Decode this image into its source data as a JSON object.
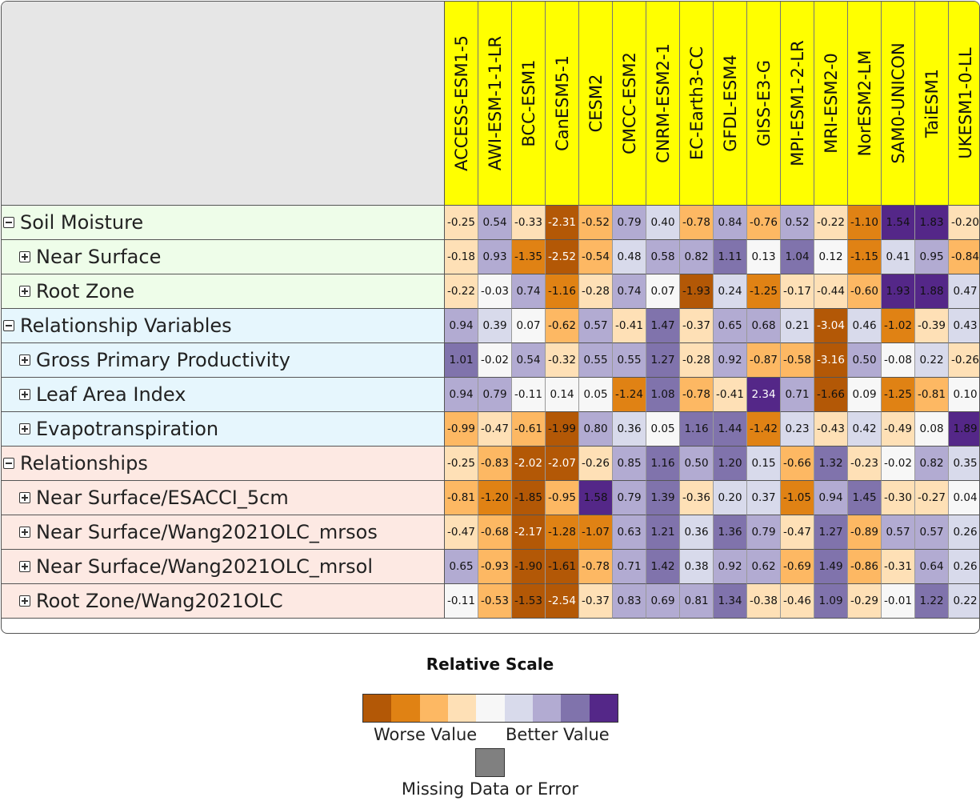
{
  "models": [
    "ACCESS-ESM1-5",
    "AWI-ESM-1-1-LR",
    "BCC-ESM1",
    "CanESM5-1",
    "CESM2",
    "CMCC-ESM2",
    "CNRM-ESM2-1",
    "EC-Earth3-CC",
    "GFDL-ESM4",
    "GISS-E3-G",
    "MPI-ESM1-2-LR",
    "MRI-ESM2-0",
    "NorESM2-LM",
    "SAM0-UNICON",
    "TaiESM1",
    "UKESM1-0-LL"
  ],
  "rows": [
    {
      "label": "Soil Moisture",
      "group": "soil",
      "level": 0,
      "values": [
        "-0.25",
        "0.54",
        "-0.33",
        "-2.31",
        "-0.52",
        "0.79",
        "0.40",
        "-0.78",
        "0.84",
        "-0.76",
        "0.52",
        "-0.22",
        "-1.10",
        "1.54",
        "1.83",
        "-0.20"
      ]
    },
    {
      "label": "Near Surface",
      "group": "soil",
      "level": 1,
      "values": [
        "-0.18",
        "0.93",
        "-1.35",
        "-2.52",
        "-0.54",
        "0.48",
        "0.58",
        "0.82",
        "1.11",
        "0.13",
        "1.04",
        "0.12",
        "-1.15",
        "0.41",
        "0.95",
        "-0.84"
      ]
    },
    {
      "label": "Root Zone",
      "group": "soil",
      "level": 1,
      "values": [
        "-0.22",
        "-0.03",
        "0.74",
        "-1.16",
        "-0.28",
        "0.74",
        "0.07",
        "-1.93",
        "0.24",
        "-1.25",
        "-0.17",
        "-0.44",
        "-0.60",
        "1.93",
        "1.88",
        "0.47"
      ]
    },
    {
      "label": "Relationship Variables",
      "group": "relvar",
      "level": 0,
      "values": [
        "0.94",
        "0.39",
        "0.07",
        "-0.62",
        "0.57",
        "-0.41",
        "1.47",
        "-0.37",
        "0.65",
        "0.68",
        "0.21",
        "-3.04",
        "0.46",
        "-1.02",
        "-0.39",
        "0.43"
      ]
    },
    {
      "label": "Gross Primary Productivity",
      "group": "relvar",
      "level": 1,
      "values": [
        "1.01",
        "-0.02",
        "0.54",
        "-0.32",
        "0.55",
        "0.55",
        "1.27",
        "-0.28",
        "0.92",
        "-0.87",
        "-0.58",
        "-3.16",
        "0.50",
        "-0.08",
        "0.22",
        "-0.26"
      ]
    },
    {
      "label": "Leaf Area Index",
      "group": "relvar",
      "level": 1,
      "values": [
        "0.94",
        "0.79",
        "-0.11",
        "0.14",
        "0.05",
        "-1.24",
        "1.08",
        "-0.78",
        "-0.41",
        "2.34",
        "0.71",
        "-1.66",
        "0.09",
        "-1.25",
        "-0.81",
        "0.10"
      ]
    },
    {
      "label": "Evapotranspiration",
      "group": "relvar",
      "level": 1,
      "values": [
        "-0.99",
        "-0.47",
        "-0.61",
        "-1.99",
        "0.80",
        "0.36",
        "0.05",
        "1.16",
        "1.44",
        "-1.42",
        "0.23",
        "-0.43",
        "0.42",
        "-0.49",
        "0.08",
        "1.89"
      ]
    },
    {
      "label": "Relationships",
      "group": "rel",
      "level": 0,
      "values": [
        "-0.25",
        "-0.83",
        "-2.02",
        "-2.07",
        "-0.26",
        "0.85",
        "1.16",
        "0.50",
        "1.20",
        "0.15",
        "-0.66",
        "1.32",
        "-0.23",
        "-0.02",
        "0.82",
        "0.35"
      ]
    },
    {
      "label": "Near Surface/ESACCI_5cm",
      "group": "rel",
      "level": 1,
      "values": [
        "-0.81",
        "-1.20",
        "-1.85",
        "-0.95",
        "1.58",
        "0.79",
        "1.39",
        "-0.36",
        "0.20",
        "0.37",
        "-1.05",
        "0.94",
        "1.45",
        "-0.30",
        "-0.27",
        "0.04"
      ]
    },
    {
      "label": "Near Surface/Wang2021OLC_mrsos",
      "group": "rel",
      "level": 1,
      "values": [
        "-0.47",
        "-0.68",
        "-2.17",
        "-1.28",
        "-1.07",
        "0.63",
        "1.21",
        "0.36",
        "1.36",
        "0.79",
        "-0.47",
        "1.27",
        "-0.89",
        "0.57",
        "0.57",
        "0.26"
      ]
    },
    {
      "label": "Near Surface/Wang2021OLC_mrsol",
      "group": "rel",
      "level": 1,
      "values": [
        "0.65",
        "-0.93",
        "-1.90",
        "-1.61",
        "-0.78",
        "0.71",
        "1.42",
        "0.38",
        "0.92",
        "0.62",
        "-0.69",
        "1.49",
        "-0.86",
        "-0.31",
        "0.64",
        "0.26"
      ]
    },
    {
      "label": "Root Zone/Wang2021OLC",
      "group": "rel",
      "level": 1,
      "values": [
        "-0.11",
        "-0.53",
        "-1.53",
        "-2.54",
        "-0.37",
        "0.83",
        "0.69",
        "0.81",
        "1.34",
        "-0.38",
        "-0.46",
        "1.09",
        "-0.29",
        "-0.01",
        "1.22",
        "0.22"
      ]
    }
  ],
  "group_colors": {
    "soil": "#eefde9",
    "relvar": "#e6f6fd",
    "rel": "#fde9e3"
  },
  "header_color": "#ffff00",
  "scale_colors": [
    "#b35806",
    "#e08214",
    "#fdb863",
    "#fee0b6",
    "#f7f7f7",
    "#d8daeb",
    "#b2abd2",
    "#8073ac",
    "#542788"
  ],
  "missing_color": "#808080",
  "legend": {
    "title": "Relative Scale",
    "worse": "Worse Value",
    "better": "Better Value",
    "missing": "Missing Data or Error"
  },
  "chart_data": {
    "type": "heatmap",
    "x": [
      "ACCESS-ESM1-5",
      "AWI-ESM-1-1-LR",
      "BCC-ESM1",
      "CanESM5-1",
      "CESM2",
      "CMCC-ESM2",
      "CNRM-ESM2-1",
      "EC-Earth3-CC",
      "GFDL-ESM4",
      "GISS-E3-G",
      "MPI-ESM1-2-LR",
      "MRI-ESM2-0",
      "NorESM2-LM",
      "SAM0-UNICON",
      "TaiESM1",
      "UKESM1-0-LL"
    ],
    "y": [
      "Soil Moisture",
      "Near Surface",
      "Root Zone",
      "Relationship Variables",
      "Gross Primary Productivity",
      "Leaf Area Index",
      "Evapotranspiration",
      "Relationships",
      "Near Surface/ESACCI_5cm",
      "Near Surface/Wang2021OLC_mrsos",
      "Near Surface/Wang2021OLC_mrsol",
      "Root Zone/Wang2021OLC"
    ],
    "values": [
      [
        -0.25,
        0.54,
        -0.33,
        -2.31,
        -0.52,
        0.79,
        0.4,
        -0.78,
        0.84,
        -0.76,
        0.52,
        -0.22,
        -1.1,
        1.54,
        1.83,
        -0.2
      ],
      [
        -0.18,
        0.93,
        -1.35,
        -2.52,
        -0.54,
        0.48,
        0.58,
        0.82,
        1.11,
        0.13,
        1.04,
        0.12,
        -1.15,
        0.41,
        0.95,
        -0.84
      ],
      [
        -0.22,
        -0.03,
        0.74,
        -1.16,
        -0.28,
        0.74,
        0.07,
        -1.93,
        0.24,
        -1.25,
        -0.17,
        -0.44,
        -0.6,
        1.93,
        1.88,
        0.47
      ],
      [
        0.94,
        0.39,
        0.07,
        -0.62,
        0.57,
        -0.41,
        1.47,
        -0.37,
        0.65,
        0.68,
        0.21,
        -3.04,
        0.46,
        -1.02,
        -0.39,
        0.43
      ],
      [
        1.01,
        -0.02,
        0.54,
        -0.32,
        0.55,
        0.55,
        1.27,
        -0.28,
        0.92,
        -0.87,
        -0.58,
        -3.16,
        0.5,
        -0.08,
        0.22,
        -0.26
      ],
      [
        0.94,
        0.79,
        -0.11,
        0.14,
        0.05,
        -1.24,
        1.08,
        -0.78,
        -0.41,
        2.34,
        0.71,
        -1.66,
        0.09,
        -1.25,
        -0.81,
        0.1
      ],
      [
        -0.99,
        -0.47,
        -0.61,
        -1.99,
        0.8,
        0.36,
        0.05,
        1.16,
        1.44,
        -1.42,
        0.23,
        -0.43,
        0.42,
        -0.49,
        0.08,
        1.89
      ],
      [
        -0.25,
        -0.83,
        -2.02,
        -2.07,
        -0.26,
        0.85,
        1.16,
        0.5,
        1.2,
        0.15,
        -0.66,
        1.32,
        -0.23,
        -0.02,
        0.82,
        0.35
      ],
      [
        -0.81,
        -1.2,
        -1.85,
        -0.95,
        1.58,
        0.79,
        1.39,
        -0.36,
        0.2,
        0.37,
        -1.05,
        0.94,
        1.45,
        -0.3,
        -0.27,
        0.04
      ],
      [
        -0.47,
        -0.68,
        -2.17,
        -1.28,
        -1.07,
        0.63,
        1.21,
        0.36,
        1.36,
        0.79,
        -0.47,
        1.27,
        -0.89,
        0.57,
        0.57,
        0.26
      ],
      [
        0.65,
        -0.93,
        -1.9,
        -1.61,
        -0.78,
        0.71,
        1.42,
        0.38,
        0.92,
        0.62,
        -0.69,
        1.49,
        -0.86,
        -0.31,
        0.64,
        0.26
      ],
      [
        -0.11,
        -0.53,
        -1.53,
        -2.54,
        -0.37,
        0.83,
        0.69,
        0.81,
        1.34,
        -0.38,
        -0.46,
        1.09,
        -0.29,
        -0.01,
        1.22,
        0.22
      ]
    ],
    "title": "",
    "legend": "bottom-center"
  }
}
